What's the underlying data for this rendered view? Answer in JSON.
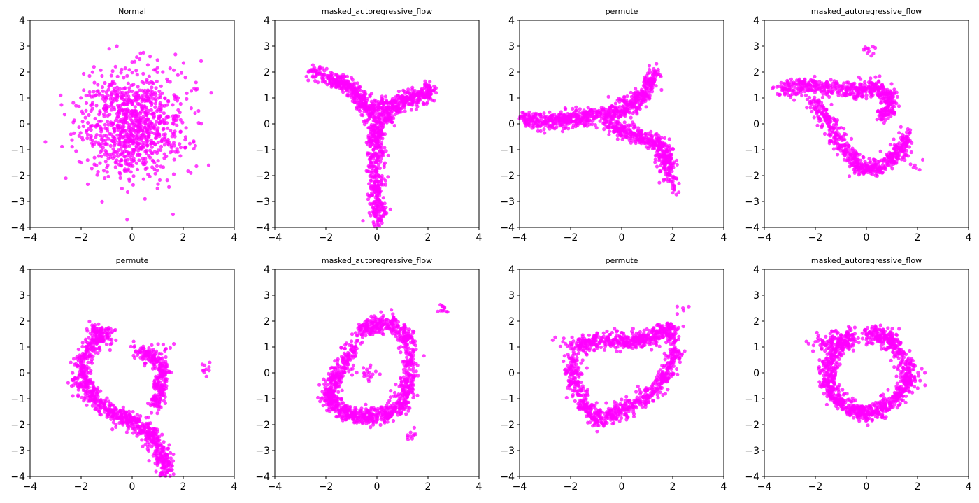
{
  "figure": {
    "point_color": "#ff00ff",
    "layout": "2x4 grid of scatter subplots"
  },
  "chart_data": [
    {
      "type": "scatter",
      "title": "Normal",
      "xlim": [
        -4,
        4
      ],
      "ylim": [
        -4,
        4
      ],
      "xticks": [
        -4,
        -2,
        0,
        2,
        4
      ],
      "yticks": [
        -4,
        -3,
        -2,
        -1,
        0,
        1,
        2,
        3,
        4
      ],
      "xticklabels": [
        "−4",
        "−2",
        "0",
        "2",
        "4"
      ],
      "yticklabels": [
        "−4",
        "−3",
        "−2",
        "−1",
        "0",
        "1",
        "2",
        "3",
        "4"
      ],
      "shape": "isotropic Gaussian cloud centered at (0,0), std ~1",
      "points": [
        [
          -0.5,
          0.4
        ],
        [
          0.3,
          -0.2
        ],
        [
          1.1,
          0.8
        ],
        [
          -1.2,
          -0.6
        ],
        [
          0.0,
          0.0
        ],
        [
          0.7,
          -1.3
        ],
        [
          -0.8,
          1.5
        ],
        [
          1.6,
          0.3
        ],
        [
          -1.7,
          -0.2
        ],
        [
          0.2,
          1.9
        ],
        [
          -0.3,
          -1.8
        ],
        [
          2.1,
          -0.9
        ],
        [
          -2.2,
          0.7
        ],
        [
          0.9,
          1.2
        ],
        [
          -1.0,
          -1.1
        ],
        [
          1.3,
          -0.4
        ],
        [
          -0.6,
          0.9
        ],
        [
          0.4,
          0.6
        ],
        [
          -0.1,
          -0.7
        ],
        [
          0.8,
          -0.1
        ],
        [
          -2.8,
          1.1
        ],
        [
          -3.4,
          -0.7
        ],
        [
          3.1,
          1.2
        ],
        [
          3.0,
          -1.6
        ],
        [
          -0.9,
          2.9
        ],
        [
          -0.6,
          3.0
        ],
        [
          0.7,
          2.6
        ],
        [
          1.6,
          -3.5
        ],
        [
          -0.2,
          -3.7
        ],
        [
          -2.6,
          -2.1
        ],
        [
          0.5,
          -2.9
        ],
        [
          2.5,
          1.6
        ],
        [
          -1.5,
          2.2
        ],
        [
          1.2,
          2.0
        ],
        [
          -2.0,
          -1.5
        ],
        [
          2.3,
          -1.9
        ],
        [
          -0.4,
          -2.5
        ],
        [
          1.8,
          1.0
        ],
        [
          -1.9,
          1.3
        ],
        [
          0.1,
          2.4
        ],
        [
          -1.3,
          0.1
        ],
        [
          1.5,
          -1.1
        ],
        [
          -0.7,
          -0.3
        ],
        [
          0.6,
          0.2
        ],
        [
          -0.2,
          1.2
        ],
        [
          0.9,
          -0.8
        ],
        [
          -1.4,
          -1.6
        ],
        [
          1.9,
          -0.3
        ],
        [
          -2.4,
          -0.4
        ],
        [
          2.6,
          0.5
        ]
      ]
    },
    {
      "type": "scatter",
      "title": "masked_autoregressive_flow",
      "xlim": [
        -4,
        4
      ],
      "ylim": [
        -4,
        4
      ],
      "xticks": [
        -4,
        -2,
        0,
        2,
        4
      ],
      "yticks": [
        -4,
        -3,
        -2,
        -1,
        0,
        1,
        2,
        3,
        4
      ],
      "xticklabels": [
        "−4",
        "−2",
        "0",
        "2",
        "4"
      ],
      "yticklabels": [
        "−4",
        "−3",
        "−2",
        "−1",
        "0",
        "1",
        "2",
        "3",
        "4"
      ],
      "shape": "Y shape: narrow stem along x≈0 from y=-3.9 to 0, left arm to (-2.5,2.0), right arm to (2.1,1.3)",
      "points": [
        [
          0.0,
          -3.9
        ],
        [
          0.05,
          -3.2
        ],
        [
          0.0,
          -2.5
        ],
        [
          -0.05,
          -1.8
        ],
        [
          0.0,
          -1.2
        ],
        [
          -0.1,
          -0.5
        ],
        [
          0.1,
          -0.2
        ],
        [
          -0.3,
          0.3
        ],
        [
          -0.6,
          0.9
        ],
        [
          -0.9,
          1.3
        ],
        [
          -1.3,
          1.5
        ],
        [
          -1.7,
          1.7
        ],
        [
          -2.5,
          2.0
        ],
        [
          0.3,
          0.2
        ],
        [
          0.6,
          0.6
        ],
        [
          1.0,
          0.9
        ],
        [
          1.4,
          1.0
        ],
        [
          1.8,
          1.1
        ],
        [
          2.1,
          1.3
        ],
        [
          -0.2,
          0.6
        ],
        [
          0.4,
          0.8
        ],
        [
          0.15,
          -0.9
        ]
      ]
    },
    {
      "type": "scatter",
      "title": "permute",
      "xlim": [
        -4,
        4
      ],
      "ylim": [
        -4,
        4
      ],
      "xticks": [
        -4,
        -2,
        0,
        2,
        4
      ],
      "yticks": [
        -4,
        -3,
        -2,
        -1,
        0,
        1,
        2,
        3,
        4
      ],
      "xticklabels": [
        "−4",
        "−2",
        "0",
        "2",
        "4"
      ],
      "yticklabels": [
        "−4",
        "−3",
        "−2",
        "−1",
        "0",
        "1",
        "2",
        "3",
        "4"
      ],
      "shape": "sideways Y: horizontal stem along y≈0 from x=-4 to 0, upper arm to (1.3,2.0), lower arm to (2.0,-2.5)",
      "points": [
        [
          -4.0,
          0.2
        ],
        [
          -3.5,
          0.15
        ],
        [
          -3.0,
          0.1
        ],
        [
          -2.5,
          0.15
        ],
        [
          -2.0,
          0.2
        ],
        [
          -1.5,
          0.25
        ],
        [
          -1.0,
          0.3
        ],
        [
          -0.5,
          0.4
        ],
        [
          0.0,
          0.5
        ],
        [
          0.4,
          0.8
        ],
        [
          0.8,
          1.1
        ],
        [
          1.1,
          1.5
        ],
        [
          1.3,
          2.0
        ],
        [
          -0.5,
          -0.1
        ],
        [
          0.0,
          -0.2
        ],
        [
          0.5,
          -0.4
        ],
        [
          1.0,
          -0.6
        ],
        [
          1.5,
          -0.8
        ],
        [
          1.7,
          -1.2
        ],
        [
          1.8,
          -1.7
        ],
        [
          2.0,
          -2.5
        ]
      ]
    },
    {
      "type": "scatter",
      "title": "masked_autoregressive_flow",
      "xlim": [
        -4,
        4
      ],
      "ylim": [
        -4,
        4
      ],
      "xticks": [
        -4,
        -2,
        0,
        2,
        4
      ],
      "yticks": [
        -4,
        -3,
        -2,
        -1,
        0,
        1,
        2,
        3,
        4
      ],
      "xticklabels": [
        "−4",
        "−2",
        "0",
        "2",
        "4"
      ],
      "yticklabels": [
        "−4",
        "−3",
        "−2",
        "−1",
        "0",
        "1",
        "2",
        "3",
        "4"
      ],
      "shape": "curved ring-like band: top bar y≈1.2 from x=-3.3 to 1.0, descending left side into bottom arc around (0,-1.8) rising to (1.6,-0.5)",
      "points": [
        [
          -3.3,
          1.3
        ],
        [
          -2.8,
          1.4
        ],
        [
          -2.2,
          1.5
        ],
        [
          -1.5,
          1.4
        ],
        [
          -0.8,
          1.3
        ],
        [
          -0.2,
          1.2
        ],
        [
          0.3,
          1.5
        ],
        [
          0.8,
          1.2
        ],
        [
          1.0,
          0.6
        ],
        [
          0.6,
          0.3
        ],
        [
          -2.0,
          0.8
        ],
        [
          -1.6,
          0.2
        ],
        [
          -1.2,
          -0.4
        ],
        [
          -0.8,
          -1.0
        ],
        [
          -0.4,
          -1.5
        ],
        [
          0.0,
          -1.8
        ],
        [
          0.5,
          -1.7
        ],
        [
          1.0,
          -1.3
        ],
        [
          1.4,
          -0.9
        ],
        [
          1.6,
          -0.5
        ],
        [
          0.1,
          2.8
        ],
        [
          1.9,
          -1.6
        ]
      ]
    },
    {
      "type": "scatter",
      "title": "permute",
      "xlim": [
        -4,
        4
      ],
      "ylim": [
        -4,
        4
      ],
      "xticks": [
        -4,
        -2,
        0,
        2,
        4
      ],
      "yticks": [
        -4,
        -3,
        -2,
        -1,
        0,
        1,
        2,
        3,
        4
      ],
      "xticklabels": [
        "−4",
        "−2",
        "0",
        "2",
        "4"
      ],
      "yticklabels": [
        "−4",
        "−3",
        "−2",
        "−1",
        "0",
        "1",
        "2",
        "3",
        "4"
      ],
      "shape": "hook shape: upper-left arc from (-1.5,1.6) curving down left side to bottom, tail to (1.3,-3.8), right upper lobe near (0.8,0.5)",
      "points": [
        [
          -1.5,
          1.6
        ],
        [
          -1.0,
          1.5
        ],
        [
          -1.6,
          1.0
        ],
        [
          -2.0,
          0.4
        ],
        [
          -1.9,
          -0.3
        ],
        [
          -1.6,
          -0.9
        ],
        [
          -1.0,
          -1.4
        ],
        [
          -0.4,
          -1.7
        ],
        [
          0.2,
          -2.0
        ],
        [
          0.7,
          -2.3
        ],
        [
          1.0,
          -2.8
        ],
        [
          1.2,
          -3.3
        ],
        [
          1.3,
          -3.8
        ],
        [
          0.3,
          0.8
        ],
        [
          0.8,
          0.6
        ],
        [
          1.2,
          0.3
        ],
        [
          1.1,
          -0.5
        ],
        [
          1.0,
          -1.2
        ],
        [
          1.3,
          0.9
        ],
        [
          2.8,
          0.1
        ],
        [
          -2.3,
          -0.3
        ]
      ]
    },
    {
      "type": "scatter",
      "title": "masked_autoregressive_flow",
      "xlim": [
        -4,
        4
      ],
      "ylim": [
        -4,
        4
      ],
      "xticks": [
        -4,
        -2,
        0,
        2,
        4
      ],
      "yticks": [
        -4,
        -3,
        -2,
        -1,
        0,
        1,
        2,
        3,
        4
      ],
      "xticklabels": [
        "−4",
        "−2",
        "0",
        "2",
        "4"
      ],
      "yticklabels": [
        "−4",
        "−3",
        "−2",
        "−1",
        "0",
        "1",
        "2",
        "3",
        "4"
      ],
      "shape": "tall distorted ring: top near y≈2, bottom near y≈-1.7, x from -1.9 to 1.5",
      "points": [
        [
          -0.5,
          1.6
        ],
        [
          0.0,
          1.9
        ],
        [
          0.6,
          1.9
        ],
        [
          1.1,
          1.4
        ],
        [
          1.3,
          0.5
        ],
        [
          1.2,
          -0.5
        ],
        [
          1.0,
          -1.2
        ],
        [
          0.4,
          -1.6
        ],
        [
          -0.3,
          -1.7
        ],
        [
          -1.0,
          -1.6
        ],
        [
          -1.6,
          -1.3
        ],
        [
          -1.9,
          -0.8
        ],
        [
          -1.6,
          -0.2
        ],
        [
          -1.2,
          0.4
        ],
        [
          -0.9,
          1.0
        ],
        [
          2.5,
          2.4
        ],
        [
          1.2,
          -2.4
        ],
        [
          -1.9,
          -1.2
        ],
        [
          -0.3,
          0.0
        ]
      ]
    },
    {
      "type": "scatter",
      "title": "permute",
      "xlim": [
        -4,
        4
      ],
      "ylim": [
        -4,
        4
      ],
      "xticks": [
        -4,
        -2,
        0,
        2,
        4
      ],
      "yticks": [
        -4,
        -3,
        -2,
        -1,
        0,
        1,
        2,
        3,
        4
      ],
      "xticklabels": [
        "−4",
        "−2",
        "0",
        "2",
        "4"
      ],
      "yticklabels": [
        "−4",
        "−3",
        "−2",
        "−1",
        "0",
        "1",
        "2",
        "3",
        "4"
      ],
      "shape": "tilted ring: top y≈1.2 from x=-1.8 to 2.0, bottom from (-1.0,-1.8) rising to (1.6,-0.4)",
      "points": [
        [
          -1.8,
          1.0
        ],
        [
          -1.2,
          1.2
        ],
        [
          -0.5,
          1.3
        ],
        [
          0.2,
          1.2
        ],
        [
          0.8,
          1.3
        ],
        [
          1.4,
          1.5
        ],
        [
          1.9,
          1.7
        ],
        [
          2.1,
          0.6
        ],
        [
          1.6,
          -0.3
        ],
        [
          1.0,
          -0.9
        ],
        [
          0.3,
          -1.3
        ],
        [
          -0.4,
          -1.6
        ],
        [
          -1.0,
          -1.8
        ],
        [
          -1.5,
          -1.2
        ],
        [
          -1.9,
          -0.3
        ],
        [
          -1.9,
          0.5
        ],
        [
          2.4,
          2.5
        ],
        [
          -2.3,
          1.2
        ]
      ]
    },
    {
      "type": "scatter",
      "title": "masked_autoregressive_flow",
      "xlim": [
        -4,
        4
      ],
      "ylim": [
        -4,
        4
      ],
      "xticks": [
        -4,
        -2,
        0,
        2,
        4
      ],
      "yticks": [
        -4,
        -3,
        -2,
        -1,
        0,
        1,
        2,
        3,
        4
      ],
      "xticklabels": [
        "−4",
        "−2",
        "0",
        "2",
        "4"
      ],
      "yticklabels": [
        "−4",
        "−3",
        "−2",
        "−1",
        "0",
        "1",
        "2",
        "3",
        "4"
      ],
      "shape": "near-circular ring centered at (0,0), radius ~1.4",
      "points": [
        [
          0.0,
          1.5
        ],
        [
          0.7,
          1.4
        ],
        [
          1.2,
          1.0
        ],
        [
          1.6,
          0.3
        ],
        [
          1.6,
          -0.4
        ],
        [
          1.2,
          -1.0
        ],
        [
          0.6,
          -1.4
        ],
        [
          0.0,
          -1.6
        ],
        [
          -0.6,
          -1.4
        ],
        [
          -1.2,
          -1.0
        ],
        [
          -1.5,
          -0.4
        ],
        [
          -1.5,
          0.3
        ],
        [
          -1.2,
          0.9
        ],
        [
          -0.6,
          1.3
        ],
        [
          -2.0,
          1.2
        ],
        [
          2.1,
          -0.3
        ]
      ]
    }
  ]
}
